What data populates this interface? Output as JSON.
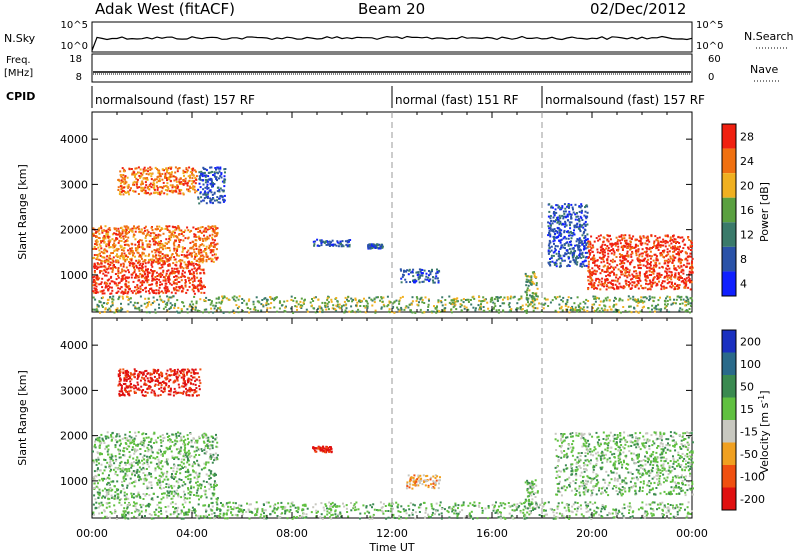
{
  "header": {
    "site": "Adak West (fitACF)",
    "beam": "Beam 20",
    "date": "02/Dec/2012"
  },
  "top_panel": {
    "left_label": "N.Sky",
    "right_label": "N.Search",
    "left_ticks": [
      "10^5",
      "10^0"
    ],
    "right_ticks": [
      "10^5",
      "10^0"
    ]
  },
  "freq_panel": {
    "left_label_1": "Freq.",
    "left_label_2": "[MHz]",
    "right_label": "Nave",
    "left_ticks": [
      "18",
      "8"
    ],
    "right_ticks": [
      "60",
      "0"
    ]
  },
  "cpid": {
    "label": "CPID",
    "segments": [
      {
        "text": "normalsound (fast) 157 RF",
        "start_h": 0,
        "end_h": 12
      },
      {
        "text": "normal (fast) 151 RF",
        "start_h": 12,
        "end_h": 18
      },
      {
        "text": "normalsound (fast) 157 RF",
        "start_h": 18,
        "end_h": 24
      }
    ]
  },
  "axes": {
    "xlabel": "Time UT",
    "ylabel": "Slant Range [km]",
    "x_ticks": [
      "00:00",
      "04:00",
      "08:00",
      "12:00",
      "16:00",
      "20:00",
      "00:00"
    ],
    "y_ticks": [
      "1000",
      "2000",
      "3000",
      "4000"
    ]
  },
  "power_bar": {
    "label": "Power [dB]",
    "ticks": [
      "4",
      "8",
      "12",
      "16",
      "20",
      "24",
      "28"
    ],
    "colors": [
      "#1020ff",
      "#2a52a8",
      "#3a7a6a",
      "#5aa040",
      "#f0b020",
      "#f07010",
      "#f02010"
    ]
  },
  "velocity_bar": {
    "label_main": "Velocity [m s",
    "label_sup": "-1",
    "label_end": "]",
    "ticks": [
      "200",
      "100",
      "50",
      "15",
      "-15",
      "-50",
      "-100",
      "-200"
    ],
    "colors": [
      "#1a30c0",
      "#2a6a8a",
      "#3a8a50",
      "#60c040",
      "#c8c8c0",
      "#f0a020",
      "#f05010",
      "#e01010"
    ]
  },
  "chart_data": {
    "type": "heatmap",
    "title": "Adak West (fitACF)",
    "xlabel": "Time UT",
    "ylabel": "Slant Range [km]",
    "xlim": [
      0,
      24
    ],
    "ylim": [
      180,
      4600
    ],
    "x_units": "hours UT",
    "mode_boundaries_h": [
      12,
      18
    ],
    "panels": [
      {
        "name": "Power",
        "colorbar_range": [
          0,
          30
        ],
        "regions": [
          {
            "t": [
              0,
              4.5
            ],
            "r": [
              600,
              1300
            ],
            "level": 27
          },
          {
            "t": [
              0,
              5
            ],
            "r": [
              1300,
              2100
            ],
            "level": 22
          },
          {
            "t": [
              1,
              4.2
            ],
            "r": [
              2800,
              3400
            ],
            "level": 25
          },
          {
            "t": [
              4.2,
              5.3
            ],
            "r": [
              2600,
              3400
            ],
            "level": 8
          },
          {
            "t": [
              8.8,
              10.3
            ],
            "r": [
              1650,
              1800
            ],
            "level": 6
          },
          {
            "t": [
              11,
              11.6
            ],
            "r": [
              1600,
              1700
            ],
            "level": 6
          },
          {
            "t": [
              12.3,
              13.9
            ],
            "r": [
              850,
              1150
            ],
            "level": 6
          },
          {
            "t": [
              17.3,
              17.8
            ],
            "r": [
              350,
              1100
            ],
            "level": 14
          },
          {
            "t": [
              18.2,
              19.8
            ],
            "r": [
              1200,
              2600
            ],
            "level": 6
          },
          {
            "t": [
              19.8,
              24
            ],
            "r": [
              700,
              1900
            ],
            "level": 27
          },
          {
            "t": [
              0,
              24
            ],
            "r": [
              180,
              550
            ],
            "level": 16
          }
        ]
      },
      {
        "name": "Velocity",
        "colorbar_range": [
          -200,
          200
        ],
        "regions": [
          {
            "t": [
              1,
              4.3
            ],
            "r": [
              2900,
              3500
            ],
            "v": -200
          },
          {
            "t": [
              0,
              5
            ],
            "r": [
              600,
              2100
            ],
            "v": 0
          },
          {
            "t": [
              8.8,
              9.6
            ],
            "r": [
              1650,
              1780
            ],
            "v": -200
          },
          {
            "t": [
              12.5,
              13.9
            ],
            "r": [
              850,
              1150
            ],
            "v": -50
          },
          {
            "t": [
              17.3,
              17.8
            ],
            "r": [
              400,
              1050
            ],
            "v": 0
          },
          {
            "t": [
              18.5,
              24
            ],
            "r": [
              700,
              2100
            ],
            "v": 0
          },
          {
            "t": [
              0,
              24
            ],
            "r": [
              180,
              550
            ],
            "v": 15
          }
        ]
      }
    ]
  }
}
